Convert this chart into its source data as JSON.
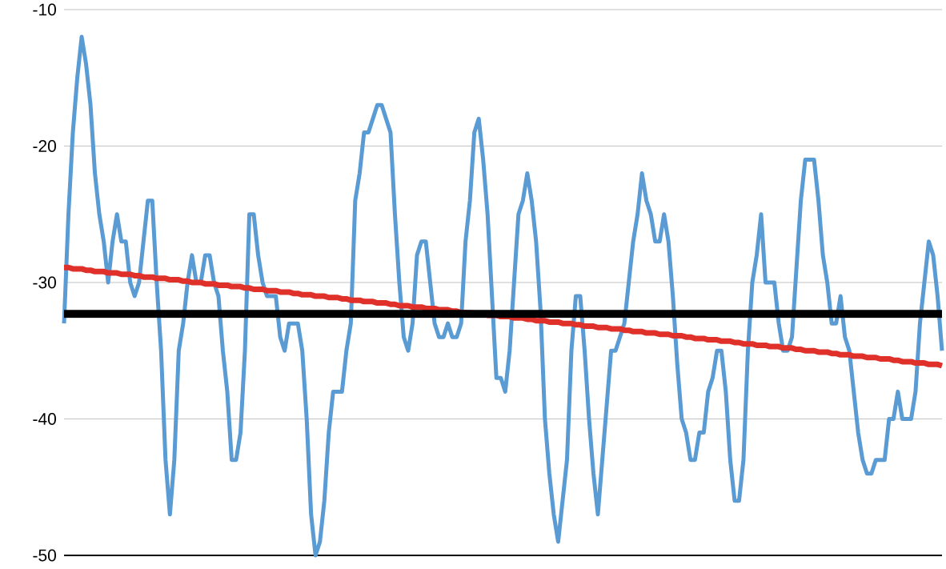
{
  "chart_data": {
    "type": "line",
    "ylim": [
      -50,
      -10
    ],
    "yticks": [
      -50,
      -40,
      -30,
      -20,
      -10
    ],
    "grid": "y",
    "tick_labels": "y",
    "categories": [
      null,
      null,
      null,
      null,
      null,
      null,
      null,
      null,
      null,
      null,
      null,
      null,
      null,
      null,
      null,
      null,
      null,
      null,
      null,
      null,
      null,
      null,
      null,
      null,
      null,
      null,
      null,
      null,
      null,
      null,
      null,
      null,
      null,
      null,
      null,
      null,
      null,
      null,
      null,
      null,
      null,
      null,
      null,
      null,
      null,
      null,
      null,
      null,
      null,
      null,
      null,
      null,
      null,
      null,
      null,
      null,
      null,
      null,
      null,
      null,
      null,
      null,
      null,
      null,
      null,
      null,
      null,
      null,
      null,
      null,
      null,
      null,
      null,
      null,
      null,
      null,
      null,
      null,
      null,
      null,
      null,
      null,
      null,
      null,
      null,
      null,
      null,
      null,
      null,
      null,
      null,
      null,
      null,
      null,
      null,
      null,
      null,
      null,
      null,
      null,
      null,
      null,
      null,
      null,
      null,
      null,
      null,
      null,
      null,
      null,
      null,
      null,
      null,
      null,
      null,
      null,
      null,
      null,
      null,
      null,
      null,
      null,
      null,
      null,
      null,
      null,
      null,
      null,
      null,
      null,
      null,
      null,
      null,
      null,
      null,
      null,
      null,
      null,
      null,
      null,
      null,
      null,
      null,
      null,
      null,
      null,
      null,
      null,
      null,
      null,
      null,
      null,
      null,
      null,
      null,
      null,
      null,
      null,
      null,
      null,
      null,
      null,
      null,
      null,
      null,
      null,
      null,
      null,
      null,
      null,
      null,
      null,
      null,
      null,
      null,
      null,
      null,
      null,
      null,
      null,
      null,
      null,
      null,
      null,
      null,
      null,
      null,
      null,
      null,
      null,
      null,
      null,
      null,
      null,
      null,
      null,
      null,
      null,
      null,
      null
    ],
    "series": [
      {
        "color": "#5a9bd4",
        "values": [
          -33,
          -25,
          -19,
          -15,
          -12,
          -14,
          -17,
          -22,
          -25,
          -27,
          -30,
          -27,
          -25,
          -27,
          -27,
          -30,
          -31,
          -30,
          -27,
          -24,
          -24,
          -30,
          -35,
          -43,
          -47,
          -43,
          -35,
          -33,
          -30,
          -28,
          -30,
          -30,
          -28,
          -28,
          -30,
          -31,
          -35,
          -38,
          -43,
          -43,
          -41,
          -35,
          -25,
          -25,
          -28,
          -30,
          -31,
          -31,
          -31,
          -34,
          -35,
          -33,
          -33,
          -33,
          -35,
          -40,
          -47,
          -50,
          -49,
          -46,
          -41,
          -38,
          -38,
          -38,
          -35,
          -33,
          -24,
          -22,
          -19,
          -19,
          -18,
          -17,
          -17,
          -18,
          -19,
          -25,
          -30,
          -34,
          -35,
          -33,
          -28,
          -27,
          -27,
          -30,
          -33,
          -34,
          -34,
          -33,
          -34,
          -34,
          -33,
          -27,
          -24,
          -19,
          -18,
          -21,
          -25,
          -31,
          -37,
          -37,
          -38,
          -35,
          -30,
          -25,
          -24,
          -22,
          -24,
          -27,
          -32,
          -40,
          -44,
          -47,
          -49,
          -46,
          -43,
          -35,
          -31,
          -31,
          -35,
          -40,
          -44,
          -47,
          -43,
          -39,
          -35,
          -35,
          -34,
          -33,
          -30,
          -27,
          -25,
          -22,
          -24,
          -25,
          -27,
          -27,
          -25,
          -27,
          -31,
          -36,
          -40,
          -41,
          -43,
          -43,
          -41,
          -41,
          -38,
          -37,
          -35,
          -35,
          -38,
          -43,
          -46,
          -46,
          -43,
          -35,
          -30,
          -28,
          -25,
          -30,
          -30,
          -30,
          -33,
          -35,
          -35,
          -34,
          -29,
          -24,
          -21,
          -21,
          -21,
          -24,
          -28,
          -30,
          -33,
          -33,
          -31,
          -34,
          -35,
          -38,
          -41,
          -43,
          -44,
          -44,
          -43,
          -43,
          -43,
          -40,
          -40,
          -38,
          -40,
          -40,
          -40,
          -38,
          -33,
          -30,
          -27,
          -28,
          -31,
          -35
        ]
      },
      {
        "color": "#e0302a",
        "values": [
          -28.9,
          -28.9,
          -29.0,
          -29.0,
          -29.0,
          -29.1,
          -29.1,
          -29.2,
          -29.2,
          -29.2,
          -29.3,
          -29.3,
          -29.3,
          -29.4,
          -29.4,
          -29.4,
          -29.5,
          -29.5,
          -29.6,
          -29.6,
          -29.6,
          -29.7,
          -29.7,
          -29.7,
          -29.8,
          -29.8,
          -29.8,
          -29.9,
          -29.9,
          -30.0,
          -30.0,
          -30.0,
          -30.1,
          -30.1,
          -30.1,
          -30.2,
          -30.2,
          -30.2,
          -30.3,
          -30.3,
          -30.3,
          -30.4,
          -30.4,
          -30.5,
          -30.5,
          -30.5,
          -30.6,
          -30.6,
          -30.6,
          -30.7,
          -30.7,
          -30.7,
          -30.8,
          -30.8,
          -30.9,
          -30.9,
          -30.9,
          -31.0,
          -31.0,
          -31.0,
          -31.1,
          -31.1,
          -31.1,
          -31.2,
          -31.2,
          -31.3,
          -31.3,
          -31.3,
          -31.4,
          -31.4,
          -31.4,
          -31.5,
          -31.5,
          -31.5,
          -31.6,
          -31.6,
          -31.7,
          -31.7,
          -31.7,
          -31.8,
          -31.8,
          -31.8,
          -31.9,
          -31.9,
          -31.9,
          -32.0,
          -32.0,
          -32.0,
          -32.1,
          -32.1,
          -32.2,
          null,
          null,
          null,
          null,
          -32.3,
          -32.4,
          -32.4,
          -32.4,
          -32.5,
          -32.5,
          -32.5,
          -32.6,
          -32.6,
          -32.6,
          -32.7,
          -32.7,
          -32.8,
          -32.8,
          -32.8,
          -32.9,
          -32.9,
          -32.9,
          -33.0,
          -33.0,
          -33.0,
          -33.1,
          -33.1,
          -33.2,
          -33.2,
          -33.2,
          -33.3,
          -33.3,
          -33.3,
          -33.4,
          -33.4,
          -33.4,
          -33.5,
          -33.5,
          -33.6,
          -33.6,
          -33.6,
          -33.7,
          -33.7,
          -33.7,
          -33.8,
          -33.8,
          -33.8,
          -33.9,
          -33.9,
          -33.9,
          -34.0,
          -34.0,
          -34.1,
          -34.1,
          -34.1,
          -34.2,
          -34.2,
          -34.2,
          -34.3,
          -34.3,
          -34.3,
          -34.4,
          -34.4,
          -34.5,
          -34.5,
          -34.5,
          -34.6,
          -34.6,
          -34.6,
          -34.7,
          -34.7,
          -34.7,
          -34.8,
          -34.8,
          -34.8,
          -34.9,
          -34.9,
          -35.0,
          -35.0,
          -35.0,
          -35.1,
          -35.1,
          -35.1,
          -35.2,
          -35.2,
          -35.3,
          -35.3,
          -35.3,
          -35.4,
          -35.4,
          -35.4,
          -35.5,
          -35.5,
          -35.5,
          -35.6,
          -35.6,
          -35.6,
          -35.7,
          -35.7,
          -35.8,
          -35.8,
          -35.8,
          -35.9,
          -35.9,
          -35.9,
          -36.0,
          -36.0,
          -36.0,
          -36.1
        ]
      }
    ],
    "ref_lines": [
      {
        "axis": "y",
        "value": -32.3,
        "color": "#000000"
      }
    ]
  }
}
